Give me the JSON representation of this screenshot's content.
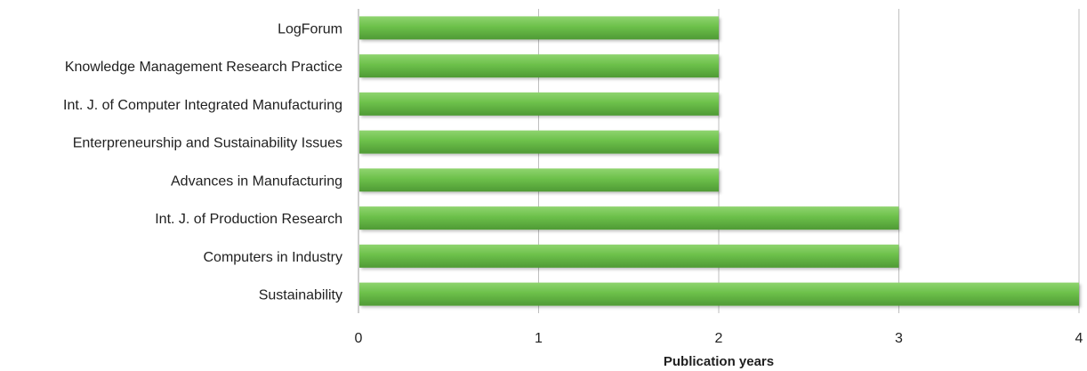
{
  "chart_data": {
    "type": "bar",
    "orientation": "horizontal",
    "categories": [
      "LogForum",
      "Knowledge Management Research Practice",
      "Int. J. of Computer Integrated Manufacturing",
      "Enterpreneurship and Sustainability Issues",
      "Advances in Manufacturing",
      "Int. J. of Production Research",
      "Computers in Industry",
      "Sustainability"
    ],
    "values": [
      2,
      2,
      2,
      2,
      2,
      3,
      3,
      4
    ],
    "xlabel": "Publication years",
    "xlim": [
      0,
      4
    ],
    "xticks": [
      0,
      1,
      2,
      3,
      4
    ],
    "grid": "vertical",
    "legend": "none",
    "colors": {
      "bar": "#6cc04a",
      "bar_light": "#8fd46f",
      "bar_dark": "#4f9a35",
      "grid": "#bfbfbf",
      "axis": "#9e9e9e"
    }
  }
}
